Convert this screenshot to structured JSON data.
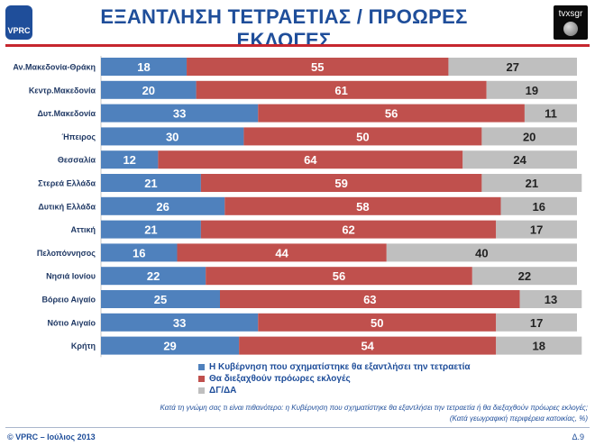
{
  "header": {
    "logo_text": "VPRC",
    "title": "ΕΞΑΝΤΛΗΣΗ ΤΕΤΡΑΕΤΙΑΣ / ΠΡΟΩΡΕΣ ΕΚΛΟΓΕΣ",
    "channel_logo_text": "tvxsgr"
  },
  "colors": {
    "blue": "#4f81bd",
    "red": "#c0504d",
    "gray": "#bfbfbf",
    "title": "#1f4e9a",
    "accent_line": "#c6262e"
  },
  "chart_data": {
    "type": "bar",
    "orientation": "horizontal",
    "stacked": true,
    "categories": [
      "Αν.Μακεδονία-Θράκη",
      "Κεντρ.Μακεδονία",
      "Δυτ.Μακεδονία",
      "Ήπειρος",
      "Θεσσαλία",
      "Στερεά Ελλάδα",
      "Δυτική Ελλάδα",
      "Αττική",
      "Πελοπόννησος",
      "Νησιά Ιονίου",
      "Βόρειο Αιγαίο",
      "Νότιο Αιγαίο",
      "Κρήτη"
    ],
    "series": [
      {
        "name": "Η Κυβέρνηση που σχηματίστηκε θα εξαντλήσει την τετραετία",
        "color": "#4f81bd",
        "values": [
          18,
          20,
          33,
          30,
          12,
          21,
          26,
          21,
          16,
          22,
          25,
          33,
          29
        ]
      },
      {
        "name": "Θα διεξαχθούν πρόωρες εκλογές",
        "color": "#c0504d",
        "values": [
          55,
          61,
          56,
          50,
          64,
          59,
          58,
          62,
          44,
          56,
          63,
          50,
          54
        ]
      },
      {
        "name": "ΔΓ/ΔΑ",
        "color": "#bfbfbf",
        "values": [
          27,
          19,
          11,
          20,
          24,
          21,
          16,
          17,
          40,
          22,
          13,
          17,
          18
        ]
      }
    ],
    "xlim": [
      0,
      100
    ],
    "legend_position": "bottom",
    "grid": false
  },
  "question_line1": "Κατά τη γνώμη σας τι είναι πιθανότερο: η Κυβέρνηση που σχηματίστηκε θα εξαντλήσει την τετραετία ή θα διεξαχθούν πρόωρες εκλογές;",
  "question_line2": "(Κατά γεωγραφική περιφέρεια κατοικίας, %)",
  "footer": {
    "left": "© VPRC – Ιούλιος 2013",
    "right": "Δ.9"
  }
}
